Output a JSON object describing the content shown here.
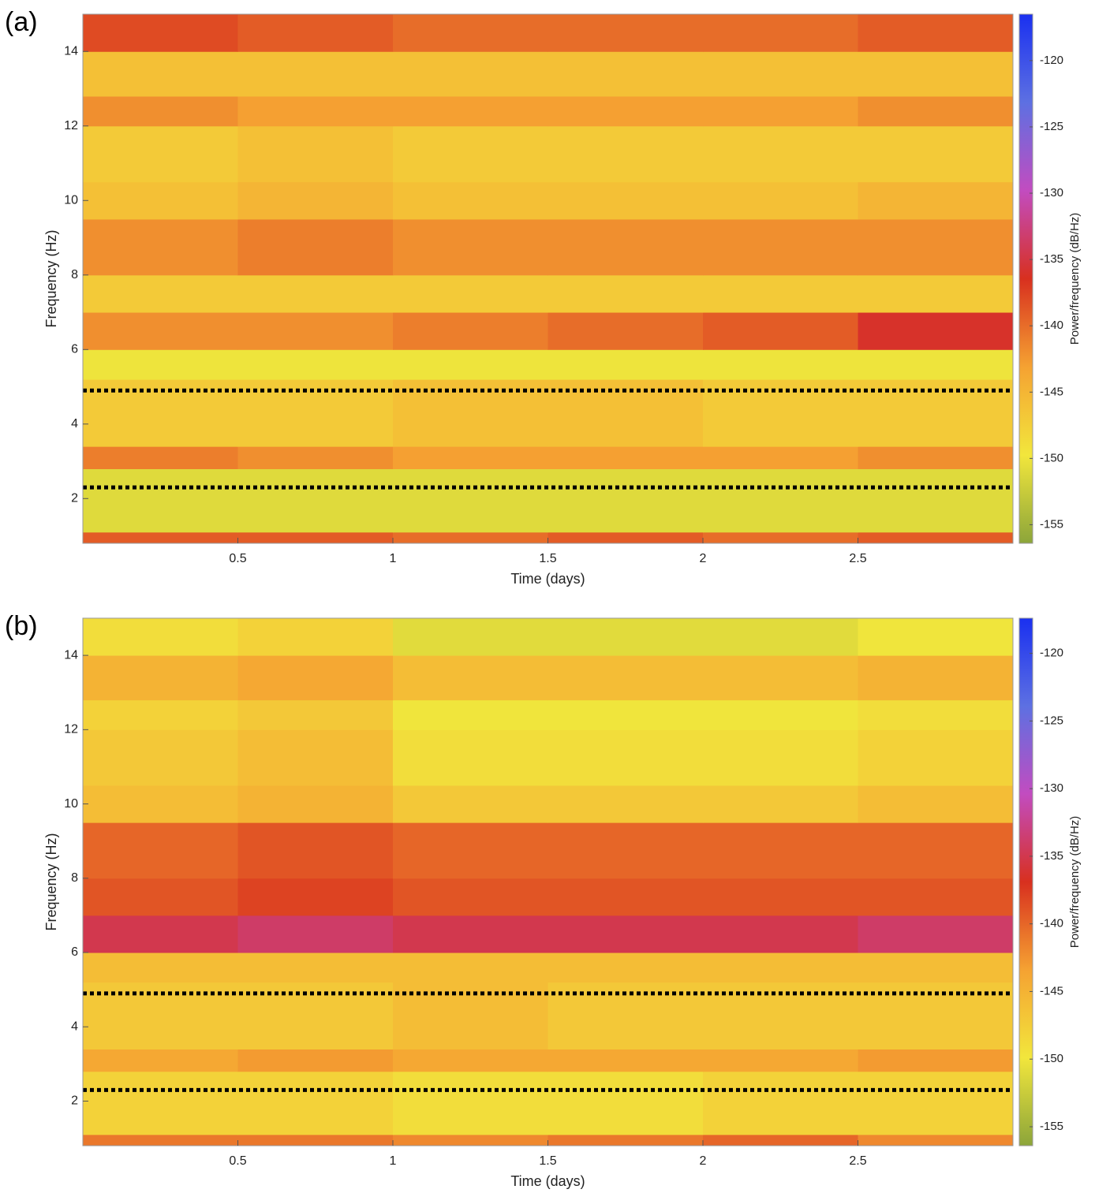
{
  "chart_data": [
    {
      "type": "heatmap",
      "panel_label": "(a)",
      "x_label": "Time (days)",
      "y_label": "Frequency (Hz)",
      "colorbar_label": "Power/frequency (dB/Hz)",
      "x_edges": [
        0,
        0.5,
        1,
        1.5,
        2,
        2.5,
        3
      ],
      "y_edges": [
        0.8,
        1.1,
        2.8,
        3.4,
        5.2,
        6,
        7,
        8,
        9.5,
        10.5,
        12,
        12.8,
        14,
        15
      ],
      "values": [
        [
          -139,
          -139,
          -140,
          -139,
          -140,
          -139
        ],
        [
          -151,
          -151,
          -151,
          -151,
          -151,
          -151
        ],
        [
          -141,
          -142,
          -143,
          -143,
          -143,
          -142
        ],
        [
          -147,
          -147,
          -146,
          -146,
          -147,
          -147
        ],
        [
          -150,
          -150,
          -150,
          -150,
          -150,
          -150
        ],
        [
          -142,
          -142,
          -141,
          -140,
          -139,
          -136
        ],
        [
          -147,
          -147,
          -147,
          -147,
          -147,
          -147
        ],
        [
          -142,
          -141,
          -142,
          -142,
          -142,
          -142
        ],
        [
          -146,
          -145,
          -146,
          -146,
          -146,
          -145
        ],
        [
          -147,
          -146,
          -147,
          -147,
          -147,
          -147
        ],
        [
          -142,
          -143,
          -143,
          -143,
          -143,
          -142
        ],
        [
          -146,
          -146,
          -146,
          -146,
          -146,
          -146
        ],
        [
          -138,
          -139,
          -140,
          -140,
          -140,
          -139
        ]
      ],
      "xlim": [
        0,
        3
      ],
      "ylim": [
        0.8,
        15
      ],
      "xticks": [
        0.5,
        1,
        1.5,
        2,
        2.5
      ],
      "yticks": [
        2,
        4,
        6,
        8,
        10,
        12,
        14
      ],
      "clim": [
        -156.4,
        -116.5
      ],
      "cticks": [
        -120,
        -125,
        -130,
        -135,
        -140,
        -145,
        -150,
        -155
      ],
      "colormap": [
        "#8ca53a",
        "#f2e63c",
        "#f5a232",
        "#d8301f",
        "#c24cc0",
        "#5d70e2",
        "#1a30f0"
      ],
      "hlines": [
        4.9,
        2.3
      ],
      "hline_color": "#000000"
    },
    {
      "type": "heatmap",
      "panel_label": "(b)",
      "x_label": "Time (days)",
      "y_label": "Frequency (Hz)",
      "colorbar_label": "Power/frequency (dB/Hz)",
      "x_edges": [
        0,
        0.5,
        1,
        1.5,
        2,
        2.5,
        3
      ],
      "y_edges": [
        0.8,
        1.1,
        2.8,
        3.4,
        5.2,
        6,
        7,
        8,
        9.5,
        10.5,
        12,
        12.8,
        14,
        15
      ],
      "values": [
        [
          -141,
          -141,
          -142,
          -141,
          -140,
          -142
        ],
        [
          -148,
          -148,
          -149,
          -149,
          -148,
          -148
        ],
        [
          -144,
          -143,
          -144,
          -144,
          -144,
          -143
        ],
        [
          -147,
          -147,
          -146,
          -147,
          -147,
          -147
        ],
        [
          -146,
          -146,
          -146,
          -146,
          -146,
          -146
        ],
        [
          -135,
          -134,
          -135,
          -135,
          -135,
          -134
        ],
        [
          -139,
          -138,
          -139,
          -139,
          -139,
          -139
        ],
        [
          -140,
          -139,
          -140,
          -140,
          -140,
          -140
        ],
        [
          -146,
          -145,
          -147,
          -147,
          -147,
          -146
        ],
        [
          -147,
          -146,
          -149,
          -149,
          -149,
          -148
        ],
        [
          -148,
          -147,
          -150,
          -150,
          -150,
          -149
        ],
        [
          -145,
          -144,
          -146,
          -146,
          -146,
          -145
        ],
        [
          -149,
          -148,
          -151,
          -151,
          -151,
          -150
        ]
      ],
      "xlim": [
        0,
        3
      ],
      "ylim": [
        0.8,
        15
      ],
      "xticks": [
        0.5,
        1,
        1.5,
        2,
        2.5
      ],
      "yticks": [
        2,
        4,
        6,
        8,
        10,
        12,
        14
      ],
      "clim": [
        -156.4,
        -117.4
      ],
      "cticks": [
        -120,
        -125,
        -130,
        -135,
        -140,
        -145,
        -150,
        -155
      ],
      "colormap": [
        "#8ca53a",
        "#f2e63c",
        "#f5a232",
        "#d8301f",
        "#c24cc0",
        "#5d70e2",
        "#1a30f0"
      ],
      "hlines": [
        4.9,
        2.3
      ],
      "hline_color": "#000000"
    }
  ]
}
